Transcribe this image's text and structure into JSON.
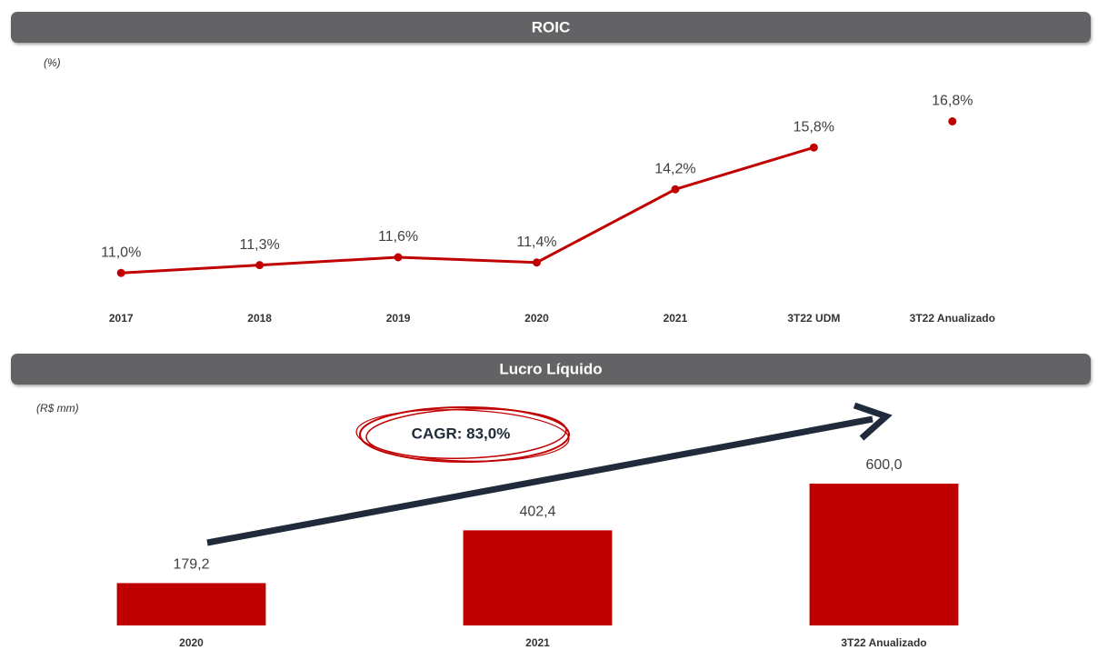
{
  "chart_data": [
    {
      "type": "line",
      "title": "ROIC",
      "subtitle": "(%)",
      "categories": [
        "2017",
        "2018",
        "2019",
        "2020",
        "2021",
        "3T22 UDM",
        "3T22 Anualizado"
      ],
      "series": [
        {
          "color": "#c00000",
          "values": [
            11.0,
            11.3,
            11.6,
            11.4,
            14.2,
            15.8,
            null
          ],
          "value_labels": [
            "11,0%",
            "11,3%",
            "11,6%",
            "11,4%",
            "14,2%",
            "15,8%",
            null
          ]
        },
        {
          "color": "#c00000",
          "values": [
            null,
            null,
            null,
            null,
            null,
            null,
            16.8
          ],
          "value_labels": [
            null,
            null,
            null,
            null,
            null,
            null,
            "16,8%"
          ]
        }
      ],
      "ylim": [
        10,
        18
      ]
    },
    {
      "type": "bar",
      "title": "Lucro Líquido",
      "subtitle": "(R$ mm)",
      "categories": [
        "2020",
        "2021",
        "3T22 Anualizado"
      ],
      "values": [
        179.2,
        402.4,
        600.0
      ],
      "value_labels": [
        "179,2",
        "402,4",
        "600,0"
      ],
      "color": "#c00000",
      "ylim": [
        0,
        1000
      ],
      "annotation": "CAGR: 83,0%"
    }
  ]
}
